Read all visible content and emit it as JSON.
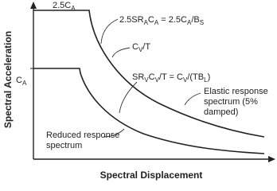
{
  "axes": {
    "y_label": "Spectral Acceleration",
    "x_label": "Spectral Displacement",
    "y_tick": {
      "parts": [
        {
          "text": "C"
        },
        {
          "sub": "A"
        }
      ]
    }
  },
  "labels": [
    {
      "parts": [
        {
          "text": "2.5C"
        },
        {
          "sub": "A"
        }
      ]
    },
    {
      "parts": [
        {
          "text": "2.5SR"
        },
        {
          "sub": "A"
        },
        {
          "text": "C"
        },
        {
          "sub": "A"
        },
        {
          "text": " = 2.5C"
        },
        {
          "sub": "A"
        },
        {
          "text": "/B"
        },
        {
          "sub": "S"
        }
      ]
    },
    {
      "parts": [
        {
          "text": "C"
        },
        {
          "sub": "V"
        },
        {
          "text": "/T"
        }
      ]
    },
    {
      "parts": [
        {
          "text": "SR"
        },
        {
          "sub": "V"
        },
        {
          "text": "C"
        },
        {
          "sub": "V"
        },
        {
          "text": "/T = C"
        },
        {
          "sub": "V"
        },
        {
          "text": "/(TB"
        },
        {
          "sub": "L"
        },
        {
          "text": ")"
        }
      ]
    }
  ],
  "elastic_label": [
    "Elastic response",
    "spectrum (5%",
    "damped)"
  ],
  "reduced_label": [
    "Reduced response",
    "spectrum"
  ]
}
